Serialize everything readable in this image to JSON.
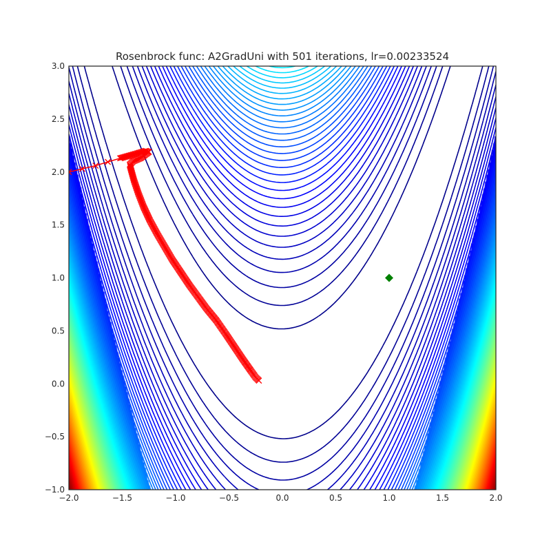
{
  "chart_data": {
    "type": "line",
    "title": "Rosenbrock func: A2GradUni with 501 iterations, lr=0.00233524",
    "xlabel": "",
    "ylabel": "",
    "xlim": [
      -2.0,
      2.0
    ],
    "ylim": [
      -1.0,
      3.0
    ],
    "x_ticks": [
      "−2.0",
      "−1.5",
      "−1.0",
      "−0.5",
      "0.0",
      "0.5",
      "1.0",
      "1.5",
      "2.0"
    ],
    "y_ticks": [
      "−1.0",
      "−0.5",
      "0.0",
      "0.5",
      "1.0",
      "1.5",
      "2.0",
      "2.5",
      "3.0"
    ],
    "grid": false,
    "contour": {
      "function": "rosenbrock",
      "colormap": "jet",
      "levels": 90
    },
    "series": [
      {
        "color": "#ff0000",
        "marker": "x",
        "x": [
          -2.0,
          -1.75,
          -1.52,
          -1.38,
          -1.28,
          -1.25,
          -1.33,
          -1.4,
          -1.43,
          -1.42,
          -1.39,
          -1.35,
          -1.3,
          -1.24,
          -1.17,
          -1.1,
          -1.03,
          -0.95,
          -0.87,
          -0.79,
          -0.71,
          -0.62,
          -0.53,
          -0.45,
          -0.37,
          -0.3,
          -0.25,
          -0.22
        ],
        "y": [
          2.0,
          2.06,
          2.13,
          2.17,
          2.2,
          2.19,
          2.13,
          2.1,
          2.07,
          2.03,
          1.92,
          1.8,
          1.67,
          1.54,
          1.41,
          1.29,
          1.17,
          1.05,
          0.93,
          0.82,
          0.71,
          0.6,
          0.47,
          0.35,
          0.23,
          0.13,
          0.06,
          0.03
        ]
      }
    ],
    "minimum": {
      "x": 1.0,
      "y": 1.0,
      "color": "#008000",
      "marker": "diamond"
    }
  }
}
